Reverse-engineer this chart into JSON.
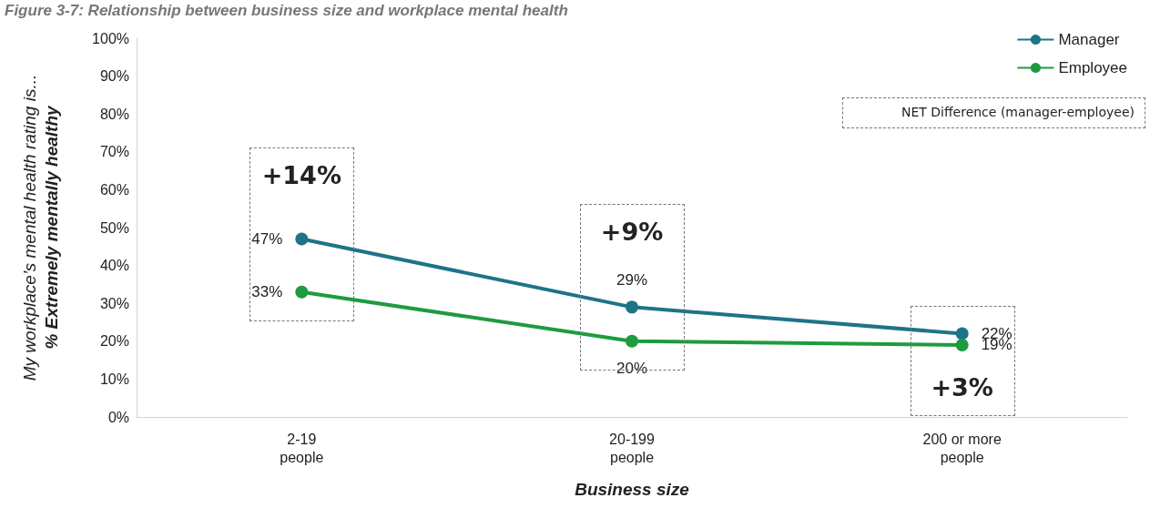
{
  "chart_data": {
    "type": "line",
    "title": "Figure 3-7: Relationship between business size and workplace mental health",
    "xlabel": "Business size",
    "ylabel": "My workplace’s mental health rating is...\n% Extremely mentally healthy",
    "categories": [
      "2-19\npeople",
      "20-199\npeople",
      "200 or more\npeople"
    ],
    "series": [
      {
        "name": "Manager",
        "color": "#1d7487",
        "values": [
          47,
          29,
          22
        ],
        "value_labels": [
          "47%",
          "29%",
          "22%"
        ]
      },
      {
        "name": "Employee",
        "color": "#1e9b3f",
        "values": [
          33,
          20,
          19
        ],
        "value_labels": [
          "33%",
          "20%",
          "19%"
        ]
      }
    ],
    "ylim": [
      0,
      100
    ],
    "yticks": [
      {
        "value": 0,
        "label": "0%"
      },
      {
        "value": 10,
        "label": "10%"
      },
      {
        "value": 20,
        "label": "20%"
      },
      {
        "value": 30,
        "label": "30%"
      },
      {
        "value": 40,
        "label": "40%"
      },
      {
        "value": 50,
        "label": "50%"
      },
      {
        "value": 60,
        "label": "60%"
      },
      {
        "value": 70,
        "label": "70%"
      },
      {
        "value": 80,
        "label": "80%"
      },
      {
        "value": 90,
        "label": "90%"
      },
      {
        "value": 100,
        "label": "100%"
      }
    ],
    "annotations": [
      "+14%",
      "+9%",
      "+3%",
      "NET Difference (manager-employee)"
    ],
    "grid": false,
    "legend": "top right",
    "marker": "circle",
    "line_style": "solid"
  }
}
